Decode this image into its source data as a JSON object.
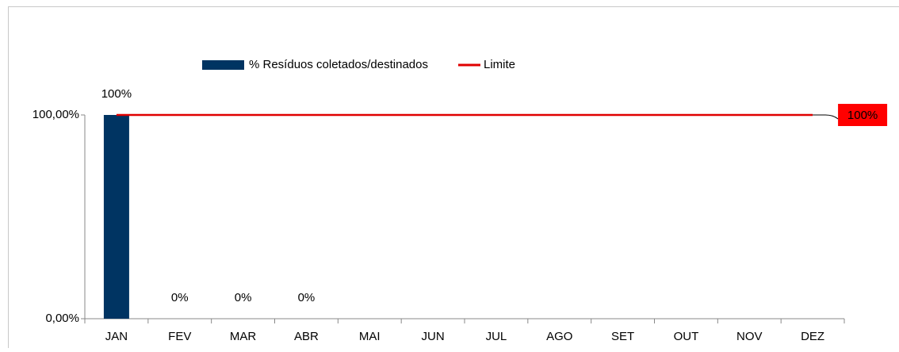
{
  "chart_data": {
    "type": "bar-line",
    "categories": [
      "JAN",
      "FEV",
      "MAR",
      "ABR",
      "MAI",
      "JUN",
      "JUL",
      "AGO",
      "SET",
      "OUT",
      "NOV",
      "DEZ"
    ],
    "series": [
      {
        "name": "%  Resíduos coletados/destinados",
        "type": "bar",
        "color": "#003462",
        "values": [
          100,
          0,
          0,
          0,
          null,
          null,
          null,
          null,
          null,
          null,
          null,
          null
        ],
        "value_labels": [
          "100%",
          "0%",
          "0%",
          "0%",
          null,
          null,
          null,
          null,
          null,
          null,
          null,
          null
        ]
      },
      {
        "name": "Limite",
        "type": "line",
        "color": "#e00000",
        "values": [
          100,
          100,
          100,
          100,
          100,
          100,
          100,
          100,
          100,
          100,
          100,
          100
        ],
        "value_labels": [
          null,
          null,
          null,
          null,
          null,
          null,
          null,
          null,
          null,
          null,
          null,
          "100%"
        ]
      }
    ],
    "ylim": [
      0,
      100
    ],
    "yticks": [
      {
        "value": 0,
        "label": "0,00%"
      },
      {
        "value": 100,
        "label": "100,00%"
      }
    ],
    "legend": "top"
  }
}
